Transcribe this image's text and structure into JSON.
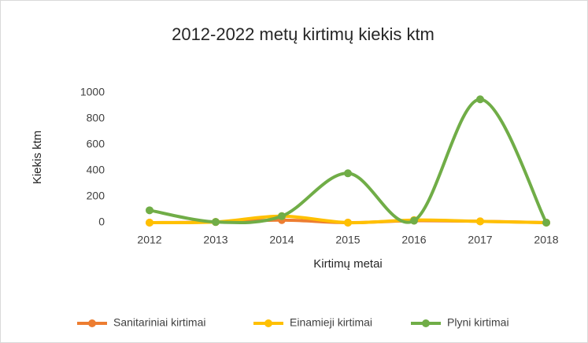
{
  "chart_data": {
    "type": "line",
    "title": "2012-2022  metų kirtimų kiekis ktm",
    "x_label": "Kirtimų metai",
    "y_label": "Kiekis ktm",
    "categories": [
      "2012",
      "2013",
      "2014",
      "2015",
      "2016",
      "2017",
      "2018"
    ],
    "series": [
      {
        "name": "Sanitariniai kirtimai",
        "color": "#ed7d31",
        "values": [
          0,
          5,
          20,
          0,
          15,
          10,
          0
        ]
      },
      {
        "name": "Einamieji kirtimai",
        "color": "#ffc000",
        "values": [
          0,
          5,
          50,
          0,
          20,
          10,
          0
        ]
      },
      {
        "name": "Plyni kirtimai",
        "color": "#70ad47",
        "values": [
          95,
          5,
          50,
          380,
          15,
          950,
          0
        ]
      }
    ],
    "ylim": [
      0,
      1000
    ],
    "yticks": [
      0,
      200,
      400,
      600,
      800,
      1000
    ],
    "grid": false,
    "smooth": true,
    "legend": "bottom"
  }
}
